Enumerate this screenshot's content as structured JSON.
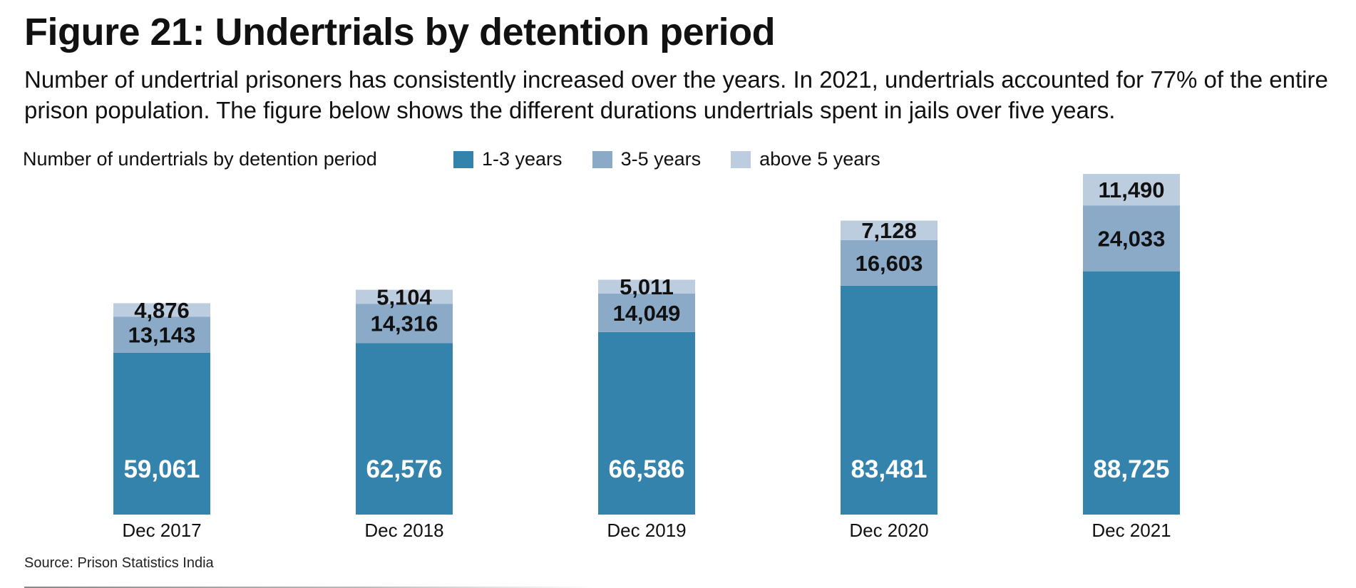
{
  "header": {
    "title": "Figure 21: Undertrials by detention period",
    "subtitle": "Number of undertrial prisoners has consistently increased over the years. In 2021, undertrials accounted for 77% of the entire prison population. The figure below shows the different durations undertrials spent in jails over five years."
  },
  "source": "Source: Prison Statistics India",
  "colors": {
    "s1": "#3483ad",
    "s2": "#8aaac7",
    "s3": "#bccde0"
  },
  "chart_data": {
    "type": "bar",
    "stacked": true,
    "title": "Number of undertrials by detention period",
    "categories": [
      "Dec 2017",
      "Dec 2018",
      "Dec 2019",
      "Dec 2020",
      "Dec 2021"
    ],
    "series": [
      {
        "name": "1-3 years",
        "values": [
          59061,
          62576,
          66586,
          83481,
          88725
        ],
        "color": "#3483ad"
      },
      {
        "name": "3-5 years",
        "values": [
          13143,
          14316,
          14049,
          16603,
          24033
        ],
        "color": "#8aaac7"
      },
      {
        "name": "above 5 years",
        "values": [
          4876,
          5104,
          5011,
          7128,
          11490
        ],
        "color": "#bccde0"
      }
    ],
    "ylim": [
      0,
      124243
    ],
    "grid": false,
    "legend": "top"
  }
}
